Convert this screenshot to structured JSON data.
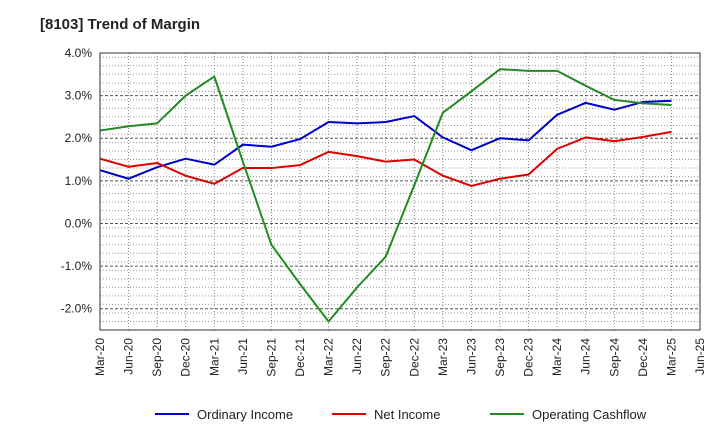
{
  "chart_data": {
    "type": "line",
    "title": "[8103]  Trend of Margin",
    "x": [
      "Mar-20",
      "Jun-20",
      "Sep-20",
      "Dec-20",
      "Mar-21",
      "Jun-21",
      "Sep-21",
      "Dec-21",
      "Mar-22",
      "Jun-22",
      "Sep-22",
      "Dec-22",
      "Mar-23",
      "Jun-23",
      "Sep-23",
      "Dec-23",
      "Mar-24",
      "Jun-24",
      "Sep-24",
      "Dec-24",
      "Mar-25",
      "Jun-25"
    ],
    "ylim": [
      -2.5,
      4.0
    ],
    "yticks": [
      4.0,
      3.0,
      2.0,
      1.0,
      0.0,
      -1.0,
      -2.0
    ],
    "ytick_labels": [
      "4.0%",
      "3.0%",
      "2.0%",
      "1.0%",
      "0.0%",
      "-1.0%",
      "-2.0%"
    ],
    "grid": true,
    "legend_position": "bottom",
    "series": [
      {
        "name": "Ordinary Income",
        "color": "#0000cc",
        "values": [
          1.25,
          1.05,
          1.32,
          1.52,
          1.38,
          1.85,
          1.8,
          1.98,
          2.38,
          2.35,
          2.38,
          2.52,
          2.02,
          1.72,
          2.0,
          1.95,
          2.55,
          2.83,
          2.67,
          2.85,
          2.88,
          null
        ]
      },
      {
        "name": "Net Income",
        "color": "#dd0000",
        "values": [
          1.52,
          1.33,
          1.42,
          1.12,
          0.93,
          1.3,
          1.3,
          1.37,
          1.68,
          1.58,
          1.45,
          1.5,
          1.12,
          0.88,
          1.05,
          1.15,
          1.75,
          2.02,
          1.93,
          2.03,
          2.15,
          null
        ]
      },
      {
        "name": "Operating Cashflow",
        "color": "#228b22",
        "values": [
          2.18,
          2.28,
          2.35,
          3.0,
          3.45,
          1.45,
          -0.5,
          -1.42,
          -2.3,
          -1.5,
          -0.78,
          0.9,
          2.6,
          3.1,
          3.62,
          3.58,
          3.58,
          3.23,
          2.9,
          2.82,
          2.78,
          null
        ]
      }
    ]
  }
}
